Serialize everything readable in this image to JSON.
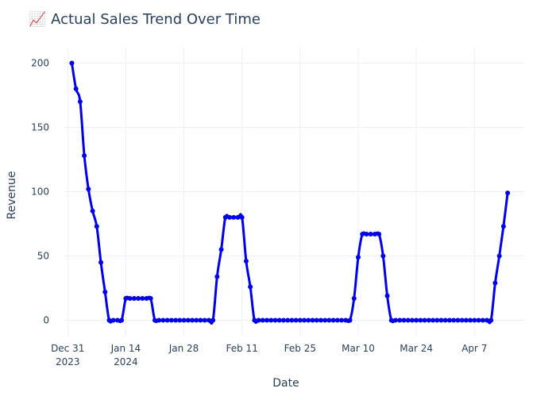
{
  "chart_data": {
    "type": "line",
    "title": "📈 Actual Sales Trend Over Time",
    "xlabel": "Date",
    "ylabel": "Revenue",
    "xlim": [
      "2023-12-30",
      "2024-04-19"
    ],
    "ylim": [
      -12,
      212
    ],
    "y_ticks": [
      0,
      50,
      100,
      150,
      200
    ],
    "x_ticks": [
      {
        "date": "2023-12-31",
        "label": "Dec 31",
        "sublabel": "2023"
      },
      {
        "date": "2024-01-14",
        "label": "Jan 14",
        "sublabel": "2024"
      },
      {
        "date": "2024-01-28",
        "label": "Jan 28",
        "sublabel": ""
      },
      {
        "date": "2024-02-11",
        "label": "Feb 11",
        "sublabel": ""
      },
      {
        "date": "2024-02-25",
        "label": "Feb 25",
        "sublabel": ""
      },
      {
        "date": "2024-03-10",
        "label": "Mar 10",
        "sublabel": ""
      },
      {
        "date": "2024-03-24",
        "label": "Mar 24",
        "sublabel": ""
      },
      {
        "date": "2024-04-07",
        "label": "Apr 7",
        "sublabel": ""
      }
    ],
    "grid": true,
    "line_color": "#0000ee",
    "grid_color": "#ebf0f8",
    "series": [
      {
        "x": [
          "2024-01-01",
          "2024-01-02",
          "2024-01-03",
          "2024-01-04",
          "2024-01-05",
          "2024-01-06",
          "2024-01-07",
          "2024-01-08",
          "2024-01-09",
          "2024-01-10",
          "2024-01-11",
          "2024-01-12",
          "2024-01-13",
          "2024-01-14",
          "2024-01-15",
          "2024-01-16",
          "2024-01-17",
          "2024-01-18",
          "2024-01-19",
          "2024-01-20",
          "2024-01-21",
          "2024-01-22",
          "2024-01-23",
          "2024-01-24",
          "2024-01-25",
          "2024-01-26",
          "2024-01-27",
          "2024-01-28",
          "2024-01-29",
          "2024-01-30",
          "2024-01-31",
          "2024-02-01",
          "2024-02-02",
          "2024-02-03",
          "2024-02-04",
          "2024-02-05",
          "2024-02-06",
          "2024-02-07",
          "2024-02-08",
          "2024-02-09",
          "2024-02-10",
          "2024-02-11",
          "2024-02-12",
          "2024-02-13",
          "2024-02-14",
          "2024-02-15",
          "2024-02-16",
          "2024-02-17",
          "2024-02-18",
          "2024-02-19",
          "2024-02-20",
          "2024-02-21",
          "2024-02-22",
          "2024-02-23",
          "2024-02-24",
          "2024-02-25",
          "2024-02-26",
          "2024-02-27",
          "2024-02-28",
          "2024-02-29",
          "2024-03-01",
          "2024-03-02",
          "2024-03-03",
          "2024-03-04",
          "2024-03-05",
          "2024-03-06",
          "2024-03-07",
          "2024-03-08",
          "2024-03-09",
          "2024-03-10",
          "2024-03-11",
          "2024-03-12",
          "2024-03-13",
          "2024-03-14",
          "2024-03-15",
          "2024-03-16",
          "2024-03-17",
          "2024-03-18",
          "2024-03-19",
          "2024-03-20",
          "2024-03-21",
          "2024-03-22",
          "2024-03-23",
          "2024-03-24",
          "2024-03-25",
          "2024-03-26",
          "2024-03-27",
          "2024-03-28",
          "2024-03-29",
          "2024-03-30",
          "2024-03-31",
          "2024-04-01",
          "2024-04-02",
          "2024-04-03",
          "2024-04-04",
          "2024-04-05",
          "2024-04-06",
          "2024-04-07",
          "2024-04-08",
          "2024-04-09",
          "2024-04-10",
          "2024-04-11",
          "2024-04-12",
          "2024-04-13",
          "2024-04-14",
          "2024-04-15"
        ],
        "y": [
          200,
          180,
          170,
          128,
          102,
          85,
          73,
          45,
          22,
          0,
          0,
          0,
          0,
          17,
          17,
          17,
          17,
          17,
          17,
          17,
          0,
          0,
          0,
          0,
          0,
          0,
          0,
          0,
          0,
          0,
          0,
          0,
          0,
          0,
          0,
          34,
          55,
          80,
          80,
          80,
          80,
          80,
          46,
          26,
          0,
          0,
          0,
          0,
          0,
          0,
          0,
          0,
          0,
          0,
          0,
          0,
          0,
          0,
          0,
          0,
          0,
          0,
          0,
          0,
          0,
          0,
          0,
          0,
          17,
          49,
          67,
          67,
          67,
          67,
          67,
          50,
          19,
          0,
          0,
          0,
          0,
          0,
          0,
          0,
          0,
          0,
          0,
          0,
          0,
          0,
          0,
          0,
          0,
          0,
          0,
          0,
          0,
          0,
          0,
          0,
          0,
          0,
          29,
          50,
          73,
          99
        ]
      }
    ]
  }
}
